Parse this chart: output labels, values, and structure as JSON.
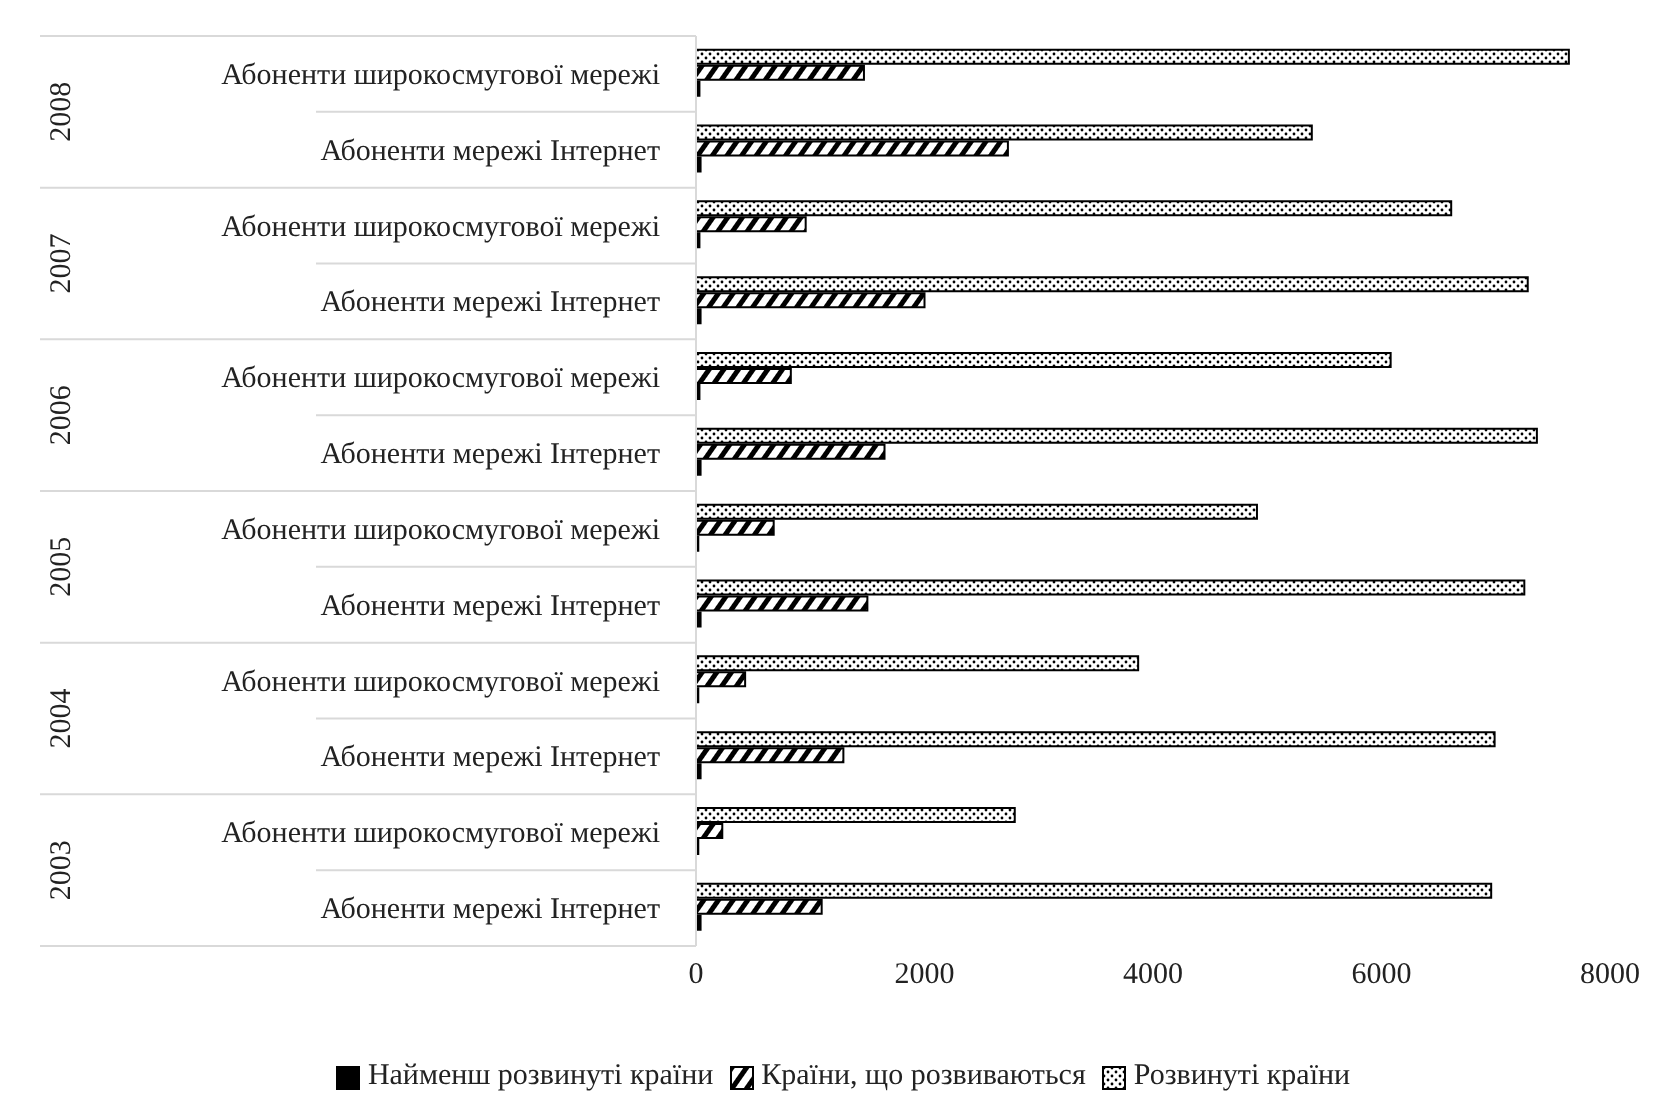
{
  "chart_data": {
    "type": "bar",
    "orientation": "horizontal",
    "categories": [
      "Абоненти широкосмугової мережі",
      "Абоненти мережі Інтернет",
      "Абоненти широкосмугової мережі",
      "Абоненти мережі Інтернет",
      "Абоненти широкосмугової мережі",
      "Абоненти мережі Інтернет",
      "Абоненти широкосмугової мережі",
      "Абоненти мережі Інтернет",
      "Абоненти широкосмугової мережі",
      "Абоненти мережі Інтернет",
      "Абоненти широкосмугової мережі",
      "Абоненти мережі Інтернет"
    ],
    "annotations": [
      "2008",
      "2007",
      "2006",
      "2005",
      "2004",
      "2003"
    ],
    "series": [
      {
        "name": "Найменш розвинуті країни",
        "color": "#000000",
        "values": [
          30,
          40,
          30,
          40,
          30,
          40,
          20,
          40,
          20,
          40,
          20,
          40
        ]
      },
      {
        "name": "Країни, що розвиваються",
        "color": "#000000",
        "values": [
          1470,
          2730,
          960,
          2000,
          830,
          1650,
          680,
          1500,
          430,
          1290,
          230,
          1100
        ]
      },
      {
        "name": "Розвинуті країни",
        "color": "#000000",
        "values": [
          7640,
          5390,
          6610,
          7280,
          6080,
          7360,
          4910,
          7250,
          3870,
          6990,
          2790,
          6960
        ]
      }
    ],
    "xlim": [
      0,
      8000
    ],
    "xticks": [
      0,
      2000,
      4000,
      6000,
      8000
    ],
    "legend": "bottom"
  }
}
